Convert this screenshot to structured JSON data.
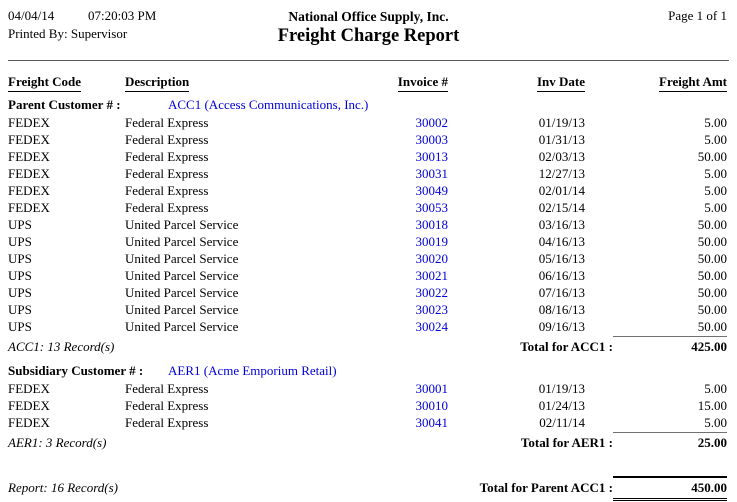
{
  "page": {
    "date": "04/04/14",
    "time": "07:20:03 PM",
    "printed_by_label": "Printed By:",
    "printed_by_value": "Supervisor",
    "company": "National Office Supply, Inc.",
    "title": "Freight Charge Report",
    "page_info": "Page 1 of 1"
  },
  "colors": {
    "link_blue": "#0000dd",
    "text": "#000000",
    "rule_gray": "#5a5a5a"
  },
  "table": {
    "columns": [
      "Freight Code",
      "Description",
      "Invoice #",
      "Inv Date",
      "Freight Amt"
    ],
    "sections": [
      {
        "group_label": "Parent Customer # :",
        "customer": "ACC1 (Access Communications, Inc.)",
        "rows": [
          {
            "code": "FEDEX",
            "description": "Federal Express",
            "invoice": "30002",
            "date": "01/19/13",
            "amount": "5.00"
          },
          {
            "code": "FEDEX",
            "description": "Federal Express",
            "invoice": "30003",
            "date": "01/31/13",
            "amount": "5.00"
          },
          {
            "code": "FEDEX",
            "description": "Federal Express",
            "invoice": "30013",
            "date": "02/03/13",
            "amount": "50.00"
          },
          {
            "code": "FEDEX",
            "description": "Federal Express",
            "invoice": "30031",
            "date": "12/27/13",
            "amount": "5.00"
          },
          {
            "code": "FEDEX",
            "description": "Federal Express",
            "invoice": "30049",
            "date": "02/01/14",
            "amount": "5.00"
          },
          {
            "code": "FEDEX",
            "description": "Federal Express",
            "invoice": "30053",
            "date": "02/15/14",
            "amount": "5.00"
          },
          {
            "code": "UPS",
            "description": "United Parcel Service",
            "invoice": "30018",
            "date": "03/16/13",
            "amount": "50.00"
          },
          {
            "code": "UPS",
            "description": "United Parcel Service",
            "invoice": "30019",
            "date": "04/16/13",
            "amount": "50.00"
          },
          {
            "code": "UPS",
            "description": "United Parcel Service",
            "invoice": "30020",
            "date": "05/16/13",
            "amount": "50.00"
          },
          {
            "code": "UPS",
            "description": "United Parcel Service",
            "invoice": "30021",
            "date": "06/16/13",
            "amount": "50.00"
          },
          {
            "code": "UPS",
            "description": "United Parcel Service",
            "invoice": "30022",
            "date": "07/16/13",
            "amount": "50.00"
          },
          {
            "code": "UPS",
            "description": "United Parcel Service",
            "invoice": "30023",
            "date": "08/16/13",
            "amount": "50.00"
          },
          {
            "code": "UPS",
            "description": "United Parcel Service",
            "invoice": "30024",
            "date": "09/16/13",
            "amount": "50.00"
          }
        ],
        "record_count": "ACC1: 13 Record(s)",
        "total_label": "Total for ACC1 :",
        "total": "425.00"
      },
      {
        "group_label": "Subsidiary Customer # :",
        "customer": "AER1 (Acme Emporium Retail)",
        "rows": [
          {
            "code": "FEDEX",
            "description": "Federal Express",
            "invoice": "30001",
            "date": "01/19/13",
            "amount": "5.00"
          },
          {
            "code": "FEDEX",
            "description": "Federal Express",
            "invoice": "30010",
            "date": "01/24/13",
            "amount": "15.00"
          },
          {
            "code": "FEDEX",
            "description": "Federal Express",
            "invoice": "30041",
            "date": "02/11/14",
            "amount": "5.00"
          }
        ],
        "record_count": "AER1: 3 Record(s)",
        "total_label": "Total for AER1 :",
        "total": "25.00"
      }
    ],
    "grand": {
      "record_count": "Report: 16 Record(s)",
      "total_label": "Total for Parent ACC1 :",
      "total": "450.00"
    }
  }
}
